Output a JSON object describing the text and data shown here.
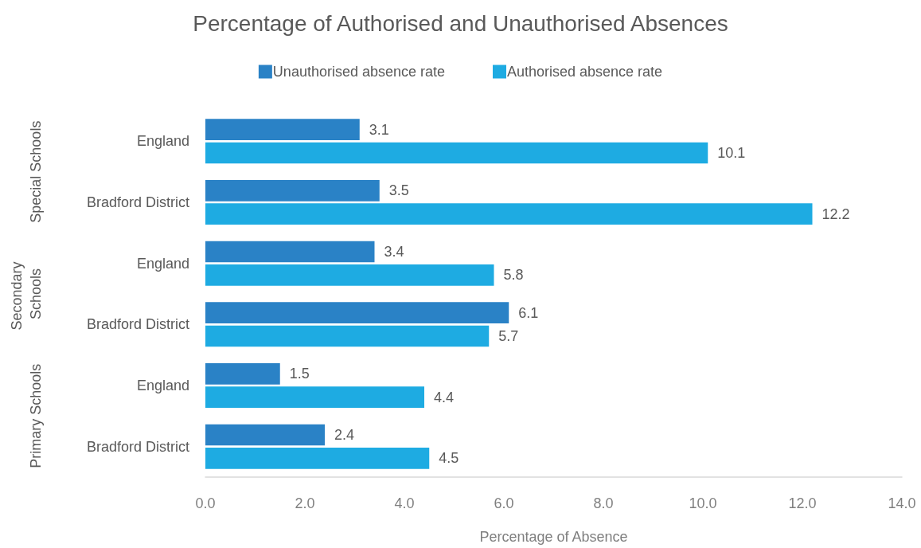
{
  "chart_data": {
    "type": "bar",
    "orientation": "horizontal",
    "title": "Percentage of Authorised and Unauthorised Absences",
    "xlabel": "Percentage of Absence",
    "annotations": [
      "Special Schools",
      "Secondary Schools",
      "Primary Schools"
    ],
    "categories": [
      "England",
      "Bradford District",
      "England",
      "Bradford District",
      "England",
      "Bradford District"
    ],
    "series": [
      {
        "name": "Unauthorised absence rate",
        "color": "#2a82c6",
        "values": [
          3.1,
          3.5,
          3.4,
          6.1,
          1.5,
          2.4
        ]
      },
      {
        "name": "Authorised absence rate",
        "color": "#1eabe2",
        "values": [
          10.1,
          12.2,
          5.8,
          5.7,
          4.4,
          4.5
        ]
      }
    ],
    "xlim": [
      0,
      14
    ],
    "xticks": [
      {
        "value": 0,
        "label": "0.0"
      },
      {
        "value": 2,
        "label": "2.0"
      },
      {
        "value": 4,
        "label": "4.0"
      },
      {
        "value": 6,
        "label": "6.0"
      },
      {
        "value": 8,
        "label": "8.0"
      },
      {
        "value": 10,
        "label": "10.0"
      },
      {
        "value": 12,
        "label": "12.0"
      },
      {
        "value": 14,
        "label": "14.0"
      }
    ],
    "data_labels": true,
    "legend": "top",
    "grid": false
  }
}
